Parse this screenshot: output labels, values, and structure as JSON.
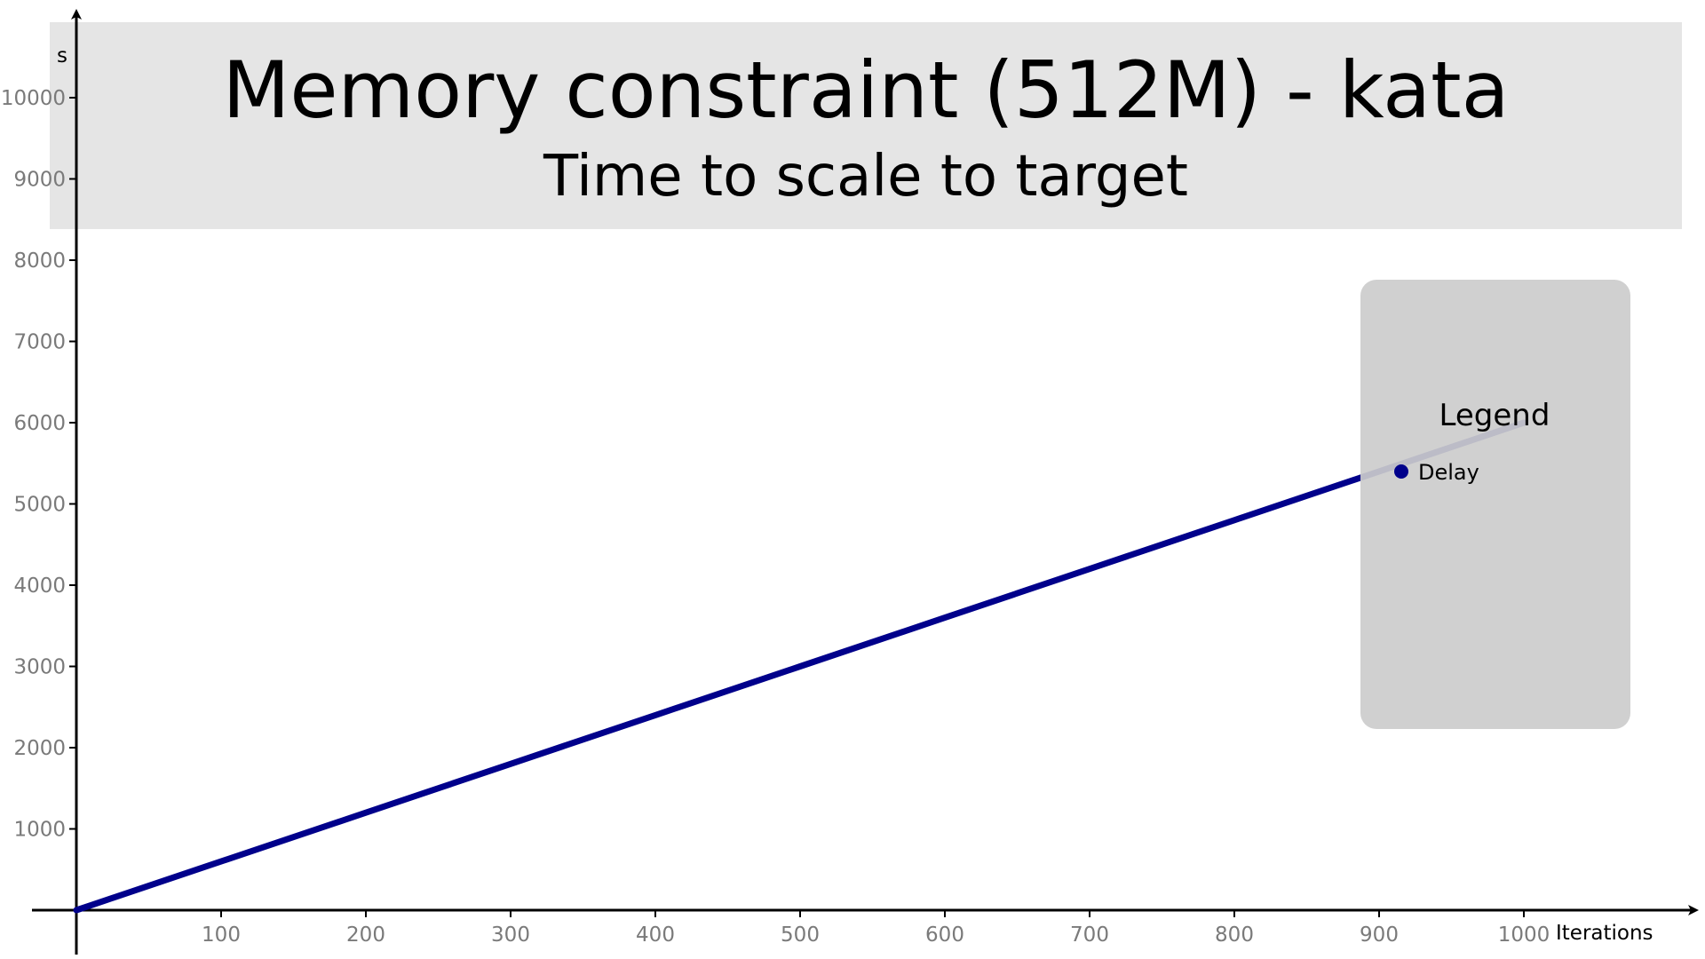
{
  "chart_data": {
    "type": "line",
    "title": "Memory constraint (512M) - kata",
    "subtitle": "Time to scale to target",
    "xlabel": "Iterations",
    "ylabel": "s",
    "xlim": [
      0,
      1000
    ],
    "ylim": [
      0,
      10000
    ],
    "x_ticks": [
      100,
      200,
      300,
      400,
      500,
      600,
      700,
      800,
      900,
      1000
    ],
    "y_ticks": [
      1000,
      2000,
      3000,
      4000,
      5000,
      6000,
      7000,
      8000,
      9000,
      10000
    ],
    "grid": false,
    "legend": {
      "title": "Legend",
      "position": "right",
      "entries": [
        "Delay"
      ]
    },
    "series": [
      {
        "name": "Delay",
        "color": "#00008b",
        "x": [
          0,
          100,
          200,
          300,
          400,
          500,
          600,
          700,
          800,
          900,
          1000
        ],
        "y": [
          0,
          600,
          1200,
          1800,
          2400,
          3000,
          3600,
          4200,
          4800,
          5400,
          6000
        ]
      }
    ]
  },
  "colors": {
    "title_band": "#e5e5e5",
    "legend_box": "#cccccc",
    "axis": "#000000",
    "tick_label": "#7a7a7a"
  }
}
